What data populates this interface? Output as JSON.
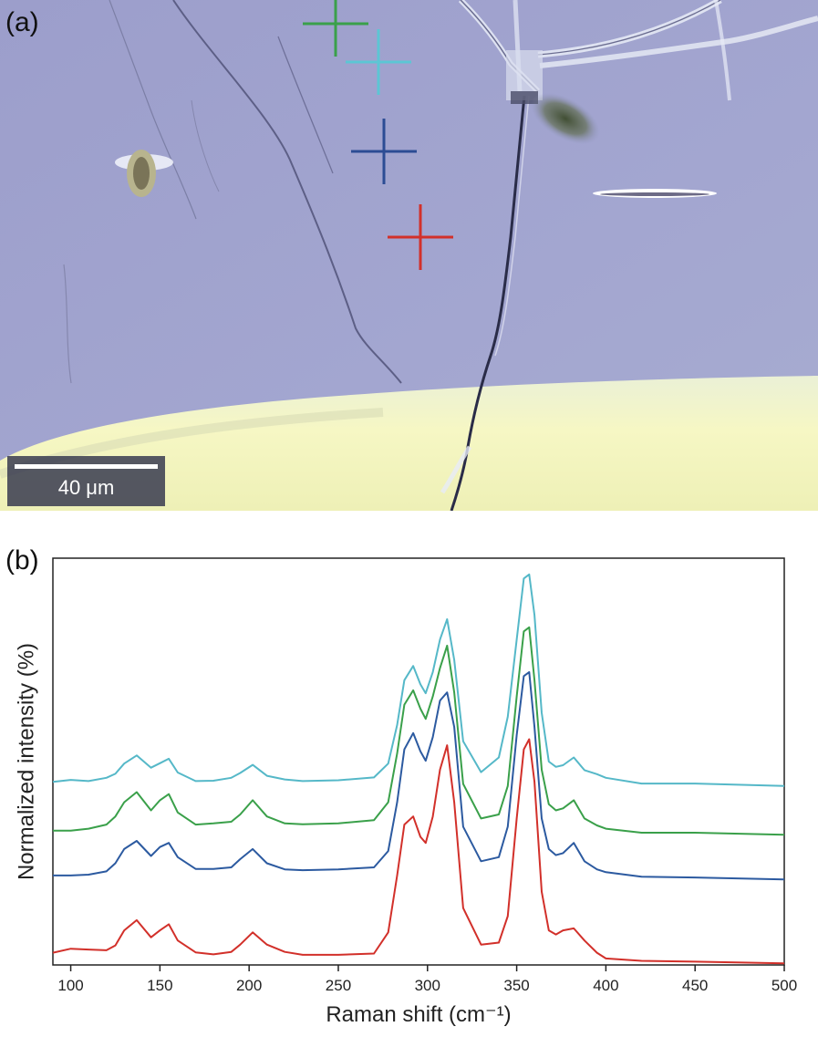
{
  "panels": {
    "a_label": "(a)",
    "b_label": "(b)"
  },
  "micrograph": {
    "scale_bar_label": "40 μm",
    "markers": [
      {
        "color": "#3aa04a"
      },
      {
        "color": "#5cc6d4"
      },
      {
        "color": "#2c4c94"
      },
      {
        "color": "#d2302a"
      }
    ]
  },
  "chart_data": {
    "type": "line",
    "xlabel": "Raman shift (cm⁻¹)",
    "ylabel": "Normalized intensity (%)",
    "xlim": [
      90,
      500
    ],
    "ylim": [
      0,
      100
    ],
    "xticks": [
      100,
      150,
      200,
      250,
      300,
      350,
      400,
      450,
      500
    ],
    "grid": false,
    "legend": "none",
    "x": [
      90,
      100,
      110,
      120,
      125,
      130,
      137,
      145,
      150,
      155,
      160,
      170,
      180,
      190,
      195,
      202,
      210,
      220,
      230,
      250,
      270,
      278,
      283,
      287,
      292,
      296,
      299,
      303,
      307,
      311,
      315,
      320,
      330,
      340,
      345,
      350,
      354,
      357,
      360,
      364,
      368,
      372,
      376,
      382,
      388,
      395,
      400,
      420,
      450,
      500
    ],
    "series": [
      {
        "color": "#55b8c8",
        "values": [
          45,
          45.5,
          45.2,
          46,
          47,
          49.5,
          51.5,
          48.5,
          49.6,
          50.7,
          47.3,
          45.2,
          45.3,
          46,
          47.2,
          49.2,
          46.5,
          45.6,
          45.2,
          45.4,
          46.1,
          49.5,
          59,
          70,
          73.5,
          69,
          66.8,
          72,
          80,
          85,
          75,
          55,
          47.4,
          51,
          61,
          80,
          95,
          96,
          86,
          62,
          50,
          48.7,
          49.1,
          51,
          47.9,
          46.9,
          46,
          44.6,
          44.6,
          44
        ]
      },
      {
        "color": "#3aa04a",
        "values": [
          33,
          33,
          33.5,
          34.5,
          36.5,
          40,
          42.5,
          38,
          40.5,
          42,
          37.5,
          34.5,
          34.8,
          35.2,
          37,
          40.5,
          36.5,
          34.8,
          34.6,
          34.8,
          35.6,
          40,
          52,
          64,
          67.5,
          63,
          60.5,
          66,
          73,
          78.5,
          67,
          44.5,
          36,
          37,
          44,
          66,
          82,
          83,
          70,
          48,
          39.5,
          38,
          38.5,
          40.5,
          36,
          34.3,
          33.5,
          32.5,
          32.5,
          32
        ]
      },
      {
        "color": "#2c5aa0",
        "values": [
          22,
          22,
          22.2,
          23,
          25,
          28.5,
          30.5,
          26.8,
          29,
          30,
          26.5,
          23.6,
          23.6,
          24,
          26,
          28.5,
          25,
          23.5,
          23.3,
          23.5,
          24,
          28,
          40,
          53,
          57,
          52.5,
          50.2,
          56,
          65,
          67,
          58.5,
          34,
          25.5,
          26.5,
          34,
          56.5,
          71,
          72,
          58.5,
          36,
          28.5,
          27,
          27.5,
          30,
          25.5,
          23.5,
          22.8,
          21.7,
          21.5,
          21
        ]
      },
      {
        "color": "#d2302a",
        "values": [
          3,
          4,
          3.8,
          3.6,
          4.8,
          8.5,
          11,
          6.8,
          8.5,
          10,
          6,
          3.1,
          2.6,
          3.2,
          5,
          8,
          5,
          3.2,
          2.5,
          2.5,
          2.8,
          8,
          22,
          34.5,
          36.5,
          31.5,
          30,
          36.5,
          48,
          54,
          40,
          14,
          5,
          5.5,
          12,
          36,
          53,
          55.5,
          45,
          18,
          8.5,
          7.5,
          8.5,
          9,
          6,
          3,
          1.6,
          1.0,
          0.8,
          0.4
        ]
      }
    ]
  }
}
